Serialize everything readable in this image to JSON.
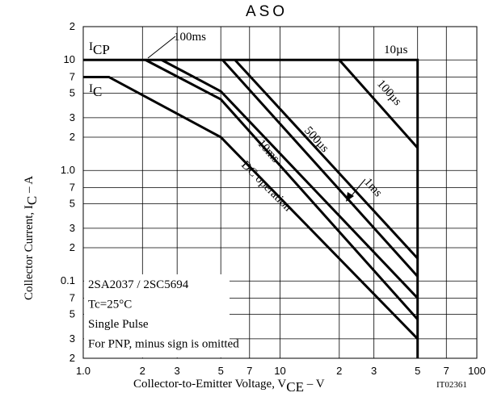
{
  "chart_data": {
    "type": "line",
    "title": "ASO",
    "xlabel": [
      "Collector-to-Emitter Voltage, V",
      "CE",
      " – V"
    ],
    "ylabel": [
      "Collector Current, I",
      "C",
      " – A"
    ],
    "xscale": "log",
    "yscale": "log",
    "grid": true,
    "color": "#000000",
    "xlim": [
      1,
      100
    ],
    "ylim": [
      0.02,
      20
    ],
    "xticks": [
      {
        "value": 1,
        "label": "1.0"
      },
      2,
      3,
      5,
      7,
      10,
      {
        "value": 20,
        "label": "2"
      },
      {
        "value": 30,
        "label": "3"
      },
      {
        "value": 50,
        "label": "5"
      },
      {
        "value": 70,
        "label": "7"
      },
      100
    ],
    "yticks": [
      {
        "value": 0.02,
        "label": "2"
      },
      {
        "value": 0.03,
        "label": "3"
      },
      {
        "value": 0.05,
        "label": "5"
      },
      {
        "value": 0.07,
        "label": "7"
      },
      0.1,
      {
        "value": 0.2,
        "label": "2"
      },
      {
        "value": 0.3,
        "label": "3"
      },
      {
        "value": 0.5,
        "label": "5"
      },
      {
        "value": 0.7,
        "label": "7"
      },
      {
        "value": 1,
        "label": "1.0"
      },
      2,
      3,
      5,
      7,
      10,
      {
        "value": 20,
        "label": "2"
      }
    ],
    "series": [
      {
        "x": [
          1,
          50,
          50
        ],
        "values": [
          10,
          10,
          0.02
        ]
      },
      {
        "name": "DC operation",
        "x": [
          1,
          1.35,
          5,
          50
        ],
        "values": [
          7,
          7,
          2,
          0.03
        ]
      },
      {
        "name": "100ms",
        "x": [
          2.07,
          5,
          50
        ],
        "values": [
          10,
          4.4,
          0.045
        ]
      },
      {
        "name": "10ms",
        "x": [
          2.5,
          5,
          50
        ],
        "values": [
          10,
          5.2,
          0.07
        ]
      },
      {
        "name": "1ms",
        "x": [
          5.1,
          50
        ],
        "values": [
          10,
          0.11
        ]
      },
      {
        "name": "500µs",
        "x": [
          5.9,
          50
        ],
        "values": [
          10,
          0.16
        ]
      },
      {
        "name": "100µs",
        "x": [
          20,
          50
        ],
        "values": [
          10,
          1.6
        ]
      }
    ],
    "icp_label": [
      "I",
      "CP"
    ],
    "ic_label": [
      "I",
      "C"
    ],
    "pulse_label": "10µs",
    "notes": [
      "2SA2037 / 2SC5694",
      "Tc=25°C",
      "Single Pulse",
      "For PNP, minus sign is omitted"
    ],
    "code": "IT02361"
  }
}
